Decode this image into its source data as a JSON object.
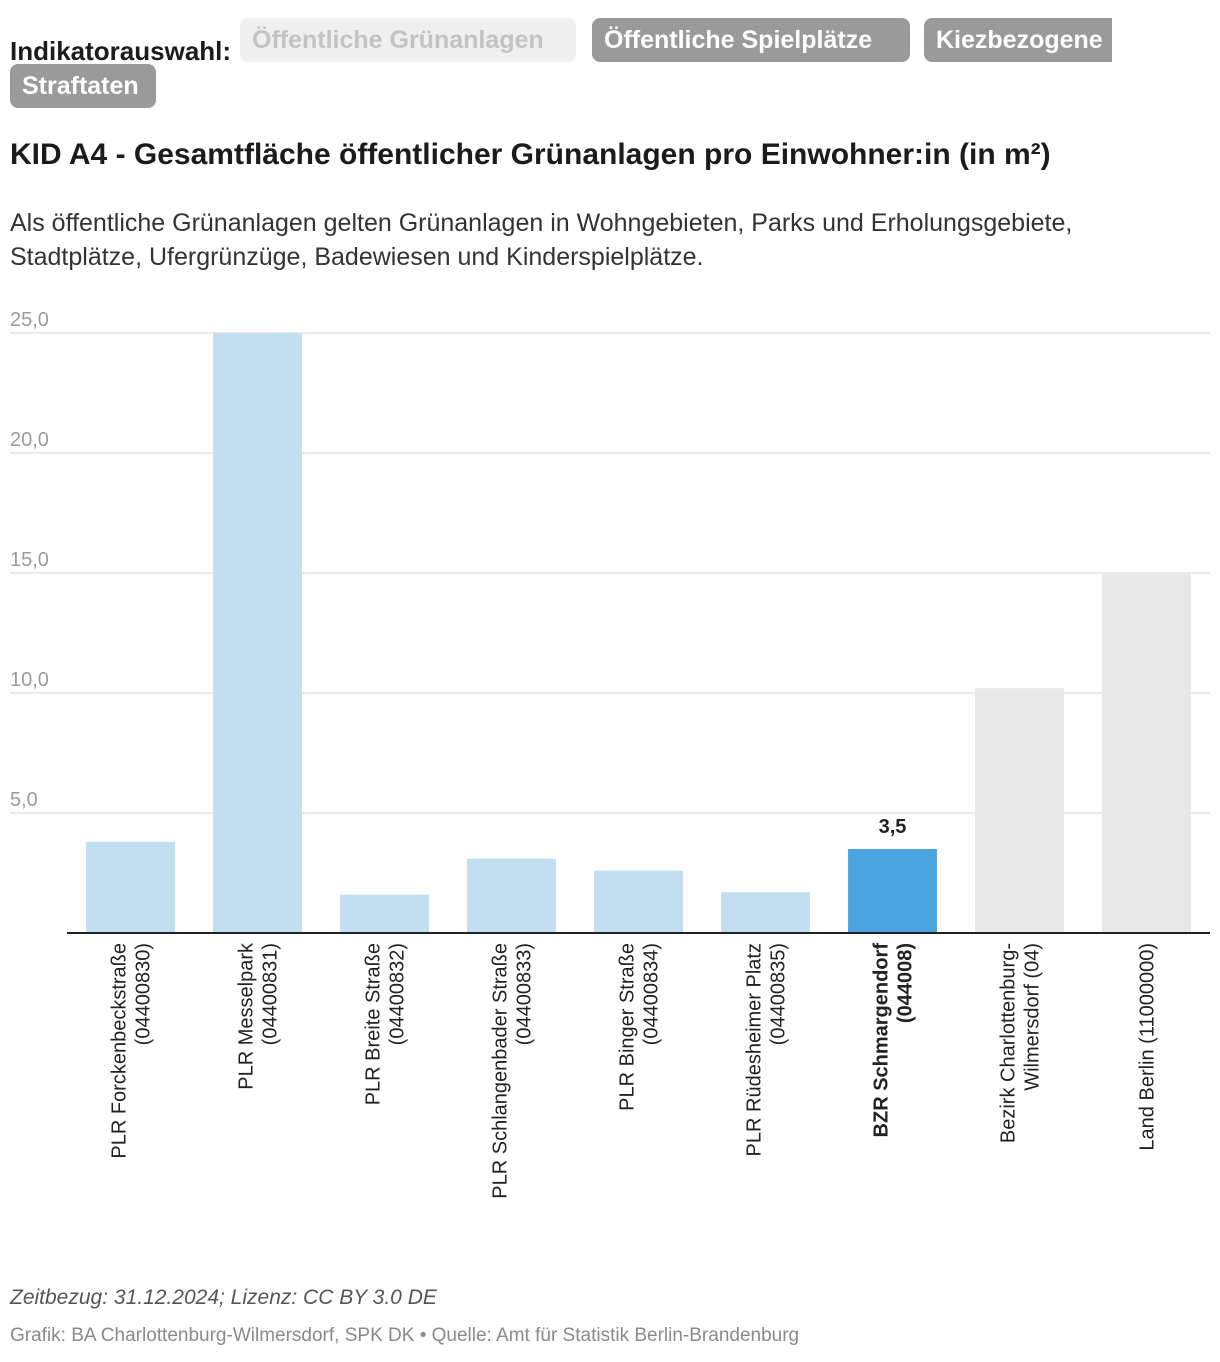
{
  "selector": {
    "label": "Indikatorauswahl:",
    "options": [
      {
        "label": "Öffentliche Grünanlagen",
        "active": true
      },
      {
        "label": "Öffentliche Spielplätze",
        "active": false
      },
      {
        "label": "Kiezbezogene Straftaten",
        "active": false
      }
    ],
    "third_line1": "Kiezbezogene",
    "third_line2": "Straftaten"
  },
  "title": "KID A4 - Gesamtfläche öffentlicher Grünanlagen pro Einwohner:in (in m²)",
  "description": "Als öffentliche Grünanlagen gelten Grünanlagen in Wohngebieten, Parks und Erholungsgebiete, Stadtplätze, Ufergrünzüge, Badewiesen und Kinderspielplätze.",
  "chart_data": {
    "type": "bar",
    "title": "KID A4 - Gesamtfläche öffentlicher Grünanlagen pro Einwohner:in (in m²)",
    "xlabel": "",
    "ylabel": "",
    "ylim": [
      0,
      25
    ],
    "yticks": [
      {
        "value": 5,
        "label": "5,0"
      },
      {
        "value": 10,
        "label": "10,0"
      },
      {
        "value": 15,
        "label": "15,0"
      },
      {
        "value": 20,
        "label": "20,0"
      },
      {
        "value": 25,
        "label": "25,0"
      }
    ],
    "grid": true,
    "categories": [
      {
        "line1": "PLR Forckenbeckstraße",
        "line2": "(04400830)",
        "value": 3.8,
        "color": "#c2dff2",
        "bold": false,
        "show_value": false
      },
      {
        "line1": "PLR Messelpark",
        "line2": "(04400831)",
        "value": 25.0,
        "color": "#c2dff2",
        "bold": false,
        "show_value": false
      },
      {
        "line1": "PLR Breite Straße",
        "line2": "(04400832)",
        "value": 1.6,
        "color": "#c2dff2",
        "bold": false,
        "show_value": false
      },
      {
        "line1": "PLR Schlangenbader Straße",
        "line2": "(04400833)",
        "value": 3.1,
        "color": "#c2dff2",
        "bold": false,
        "show_value": false
      },
      {
        "line1": "PLR Binger Straße",
        "line2": "(04400834)",
        "value": 2.6,
        "color": "#c2dff2",
        "bold": false,
        "show_value": false
      },
      {
        "line1": "PLR Rüdesheimer Platz",
        "line2": "(04400835)",
        "value": 1.7,
        "color": "#c2dff2",
        "bold": false,
        "show_value": false
      },
      {
        "line1": "BZR Schmargendorf",
        "line2": "(044008)",
        "value": 3.5,
        "value_label": "3,5",
        "color": "#4aa3df",
        "bold": true,
        "show_value": true
      },
      {
        "line1": "Bezirk Charlottenburg-",
        "line2": "Wilmersdorf (04)",
        "value": 10.2,
        "color": "#e8e8e8",
        "bold": false,
        "show_value": false
      },
      {
        "line1": "Land Berlin (11000000)",
        "line2": "",
        "value": 15.0,
        "color": "#e8e8e8",
        "bold": false,
        "show_value": false
      }
    ]
  },
  "footer": {
    "note": "Zeitbezug: 31.12.2024; Lizenz: CC BY 3.0 DE",
    "credits": "Grafik: BA Charlottenburg-Wilmersdorf, SPK DK • Quelle: Amt für Statistik Berlin-Brandenburg"
  }
}
